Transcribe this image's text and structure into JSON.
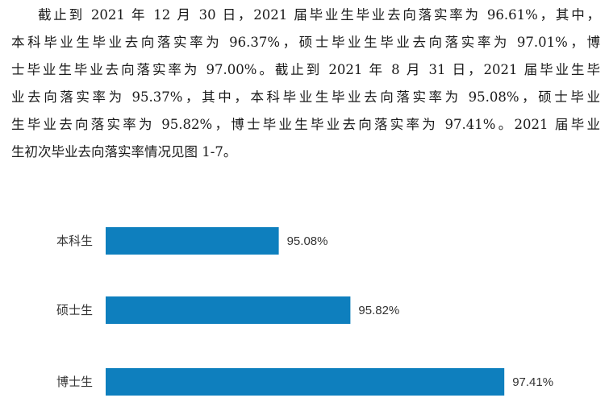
{
  "text_lines": [
    "截止到 2021 年 12 月 30 日，2021 届毕业生毕业去向落实率为 96.61%，其中，",
    "本科毕业生毕业去向落实率为 96.37%，硕士毕业生毕业去向落实率为 97.01%，博",
    "士毕业生毕业去向落实率为 97.00%。截止到 2021 年 8 月 31 日，2021 届毕业生毕",
    "业去向落实率为 95.37%，其中，本科毕业生毕业去向落实率为 95.08%，硕士毕业",
    "生毕业去向落实率为 95.82%，博士毕业生毕业去向落实率为 97.41%。2021 届毕业",
    "生初次毕业去向落实率情况见图 1-7。"
  ],
  "chart_data": {
    "type": "bar",
    "orientation": "horizontal",
    "categories": [
      "本科生",
      "硕士生",
      "博士生"
    ],
    "values": [
      95.08,
      95.82,
      97.41
    ],
    "value_labels": [
      "95.08%",
      "95.82%",
      "97.41%"
    ],
    "bar_color": "#0e7fbe",
    "xlim": [
      93,
      98
    ]
  }
}
